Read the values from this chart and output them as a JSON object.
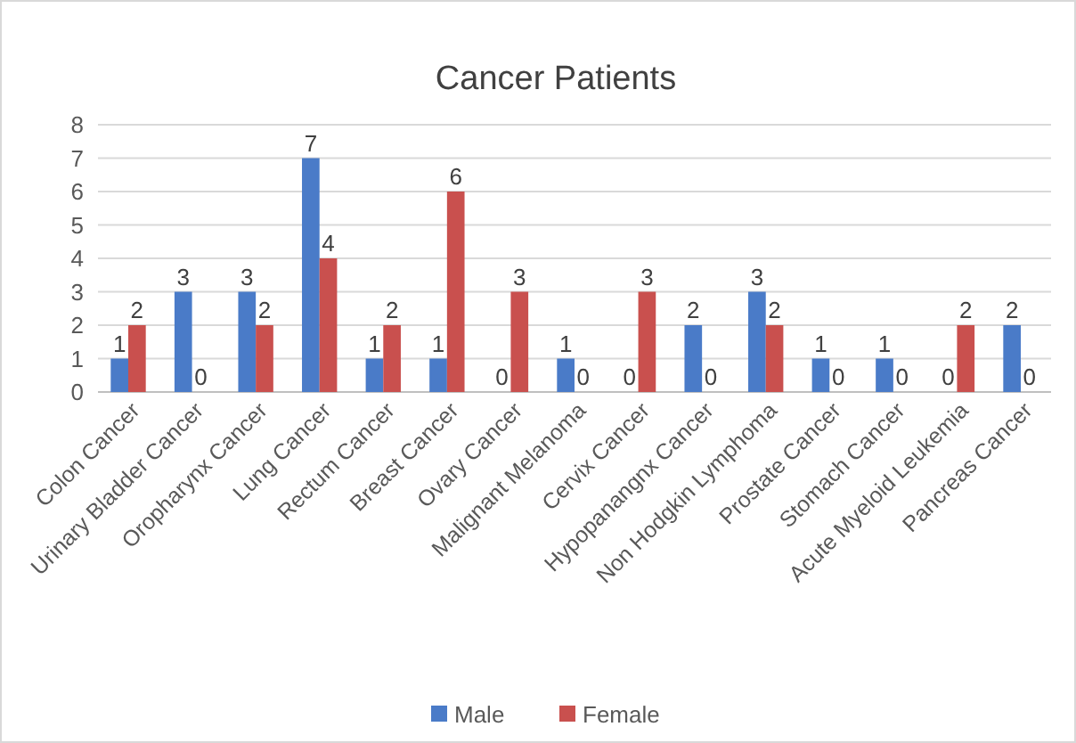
{
  "chart_data": {
    "type": "bar",
    "title": "Cancer Patients",
    "categories": [
      "Colon Cancer",
      "Urinary Bladder Cancer",
      "Oropharynx Cancer",
      "Lung Cancer",
      "Rectum Cancer",
      "Breast Cancer",
      "Ovary Cancer",
      "Malignant Melanoma",
      "Cervix Cancer",
      "Hypopanangnx Cancer",
      "Non Hodgkin Lymphoma",
      "Prostate Cancer",
      "Stomach Cancer",
      "Acute Myeloid Leukemia",
      "Pancreas Cancer"
    ],
    "series": [
      {
        "name": "Male",
        "color": "#4a7bc8",
        "values": [
          1,
          3,
          3,
          7,
          1,
          1,
          0,
          1,
          0,
          2,
          3,
          1,
          1,
          0,
          2
        ]
      },
      {
        "name": "Female",
        "color": "#c9504e",
        "values": [
          2,
          0,
          2,
          4,
          2,
          6,
          3,
          0,
          3,
          0,
          2,
          0,
          0,
          2,
          0
        ]
      }
    ],
    "ylim": [
      0,
      8
    ],
    "yticks": [
      0,
      1,
      2,
      3,
      4,
      5,
      6,
      7,
      8
    ],
    "grid": "y",
    "legend": "bottom",
    "data_labels": true
  }
}
